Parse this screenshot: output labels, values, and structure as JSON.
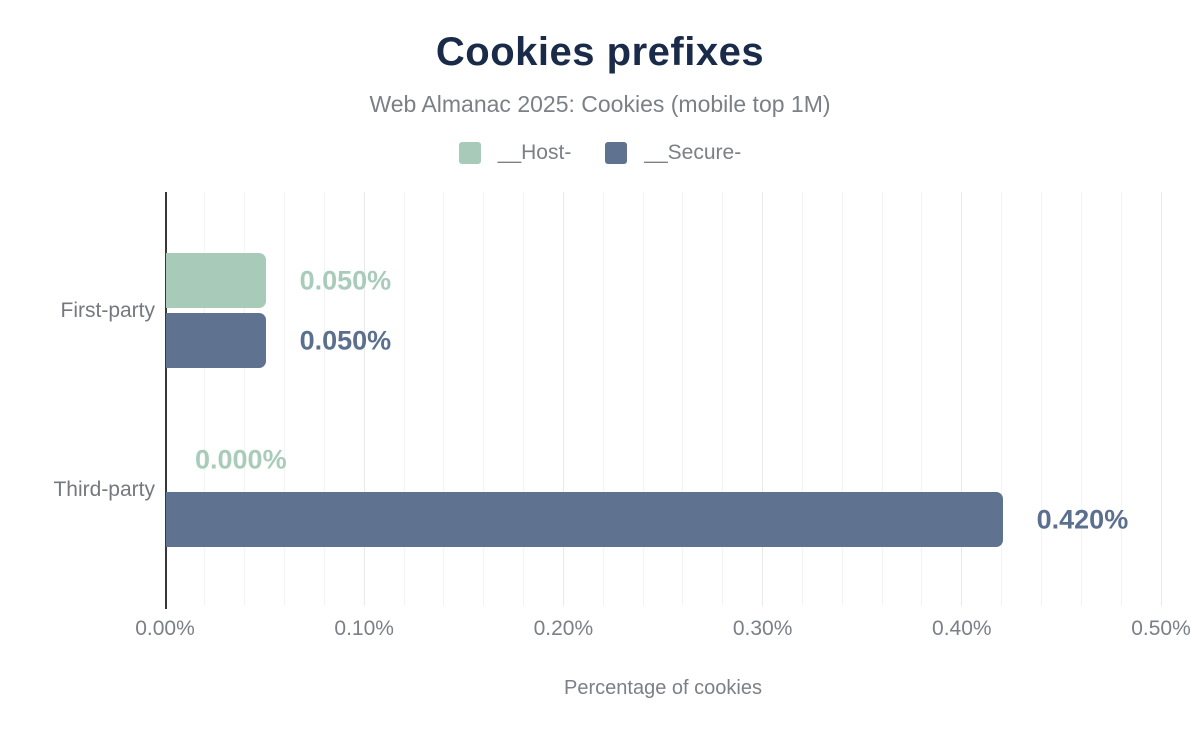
{
  "header": {
    "title": "Cookies prefixes",
    "subtitle": "Web Almanac 2025: Cookies (mobile top 1M)"
  },
  "chart_data": {
    "type": "bar",
    "orientation": "horizontal",
    "title": "Cookies prefixes",
    "subtitle": "Web Almanac 2025: Cookies (mobile top 1M)",
    "xlabel": "Percentage of cookies",
    "ylabel": "",
    "categories": [
      "First-party",
      "Third-party"
    ],
    "series": [
      {
        "name": "__Host-",
        "color": "#a8cab9",
        "label_color": "#a9ccba",
        "values": [
          0.05,
          0.0
        ],
        "value_labels": [
          "0.050%",
          "0.000%"
        ]
      },
      {
        "name": "__Secure-",
        "color": "#5f7290",
        "label_color": "#5b6f8f",
        "values": [
          0.05,
          0.42
        ],
        "value_labels": [
          "0.050%",
          "0.420%"
        ]
      }
    ],
    "xlim": [
      0,
      0.5
    ],
    "x_ticks": [
      {
        "value": 0.0,
        "label": "0.00%"
      },
      {
        "value": 0.1,
        "label": "0.10%"
      },
      {
        "value": 0.2,
        "label": "0.20%"
      },
      {
        "value": 0.3,
        "label": "0.30%"
      },
      {
        "value": 0.4,
        "label": "0.40%"
      },
      {
        "value": 0.5,
        "label": "0.50%"
      }
    ],
    "minor_tick_step": 0.02,
    "major_tick_step": 0.1,
    "grid": true,
    "legend_position": "top"
  }
}
